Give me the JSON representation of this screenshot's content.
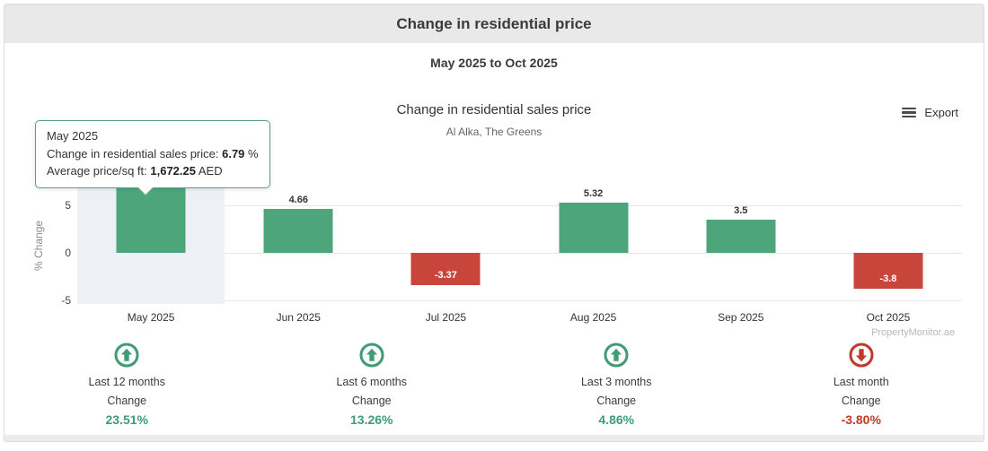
{
  "header": {
    "title": "Change in residential price"
  },
  "period_subtitle": "May 2025 to Oct 2025",
  "chart": {
    "title": "Change in residential sales price",
    "subtitle": "Al Alka, The Greens",
    "export_label": "Export",
    "watermark": "PropertyMonitor.ae"
  },
  "tooltip": {
    "title": "May 2025",
    "line1_label": "Change in residential sales price: ",
    "line1_value": "6.79",
    "line1_suffix": " %",
    "line2_label": "Average price/sq ft: ",
    "line2_value": "1,672.25",
    "line2_suffix": " AED"
  },
  "chart_data": {
    "type": "bar",
    "title": "Change in residential sales price",
    "subtitle": "Al Alka, The Greens",
    "categories": [
      "May 2025",
      "Jun 2025",
      "Jul 2025",
      "Aug 2025",
      "Sep 2025",
      "Oct 2025"
    ],
    "values": [
      6.79,
      4.66,
      -3.37,
      5.32,
      3.5,
      -3.8
    ],
    "point_labels": [
      "6.79",
      "4.66",
      "-3.37",
      "5.32",
      "3.5",
      "-3.8"
    ],
    "xlabel": "",
    "ylabel": "% Change",
    "yticks": [
      5,
      0,
      -5
    ],
    "ylim": [
      -5.4,
      7.0
    ],
    "grid": true,
    "legend": false,
    "positive_color": "#4ea57c",
    "negative_color": "#c7453a",
    "highlighted_category": "May 2025",
    "muted_label_category": "May 2025"
  },
  "stats": [
    {
      "label": "Last 12 months",
      "change_label": "Change",
      "value": "23.51%",
      "direction": "up"
    },
    {
      "label": "Last 6 months",
      "change_label": "Change",
      "value": "13.26%",
      "direction": "up"
    },
    {
      "label": "Last 3 months",
      "change_label": "Change",
      "value": "4.86%",
      "direction": "up"
    },
    {
      "label": "Last month",
      "change_label": "Change",
      "value": "-3.80%",
      "direction": "down"
    }
  ],
  "status_colors": {
    "up": "#3f9c76",
    "down": "#c0392b"
  }
}
